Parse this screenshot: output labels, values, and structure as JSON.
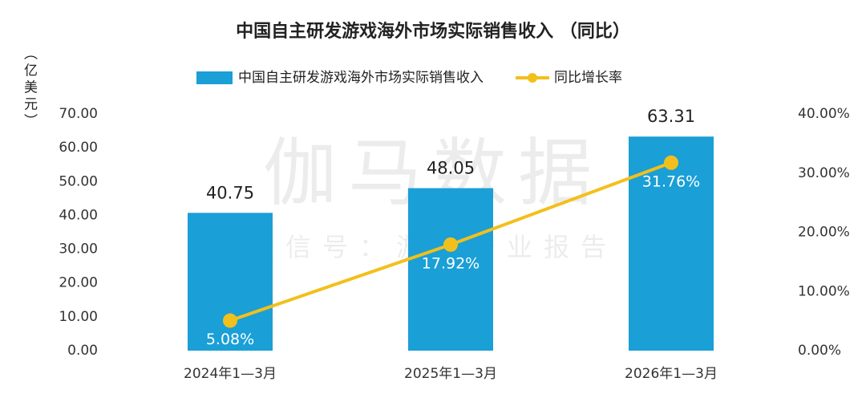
{
  "chart_data": {
    "type": "bar_line",
    "title": "中国自主研发游戏海外市场实际销售收入 （同比）",
    "y_label": "（亿美元）",
    "watermark": "伽马数据",
    "watermark_sub": "微信号：游戏产业报告",
    "categories": [
      "2024年1—3月",
      "2025年1—3月",
      "2026年1—3月"
    ],
    "series": [
      {
        "name": "中国自主研发游戏海外市场实际销售收入",
        "type": "bar",
        "color": "#1a9fd6",
        "values": [
          40.75,
          48.05,
          63.31
        ]
      },
      {
        "name": "同比增长率",
        "type": "line",
        "axis": "y2",
        "color": "#f2c01c",
        "values": [
          5.08,
          17.92,
          31.76
        ],
        "value_labels": [
          "5.08%",
          "17.92%",
          "31.76%"
        ]
      }
    ],
    "ylim": [
      0,
      70
    ],
    "yticks": [
      {
        "value": 0,
        "label": "0.00"
      },
      {
        "value": 10,
        "label": "10.00"
      },
      {
        "value": 20,
        "label": "20.00"
      },
      {
        "value": 30,
        "label": "30.00"
      },
      {
        "value": 40,
        "label": "40.00"
      },
      {
        "value": 50,
        "label": "50.00"
      },
      {
        "value": 60,
        "label": "60.00"
      },
      {
        "value": 70,
        "label": "70.00"
      }
    ],
    "y2lim": [
      0,
      40
    ],
    "y2ticks": [
      {
        "value": 0,
        "label": "0.00%"
      },
      {
        "value": 10,
        "label": "10.00%"
      },
      {
        "value": 20,
        "label": "20.00%"
      },
      {
        "value": 30,
        "label": "30.00%"
      },
      {
        "value": 40,
        "label": "40.00%"
      }
    ],
    "grid": false
  }
}
